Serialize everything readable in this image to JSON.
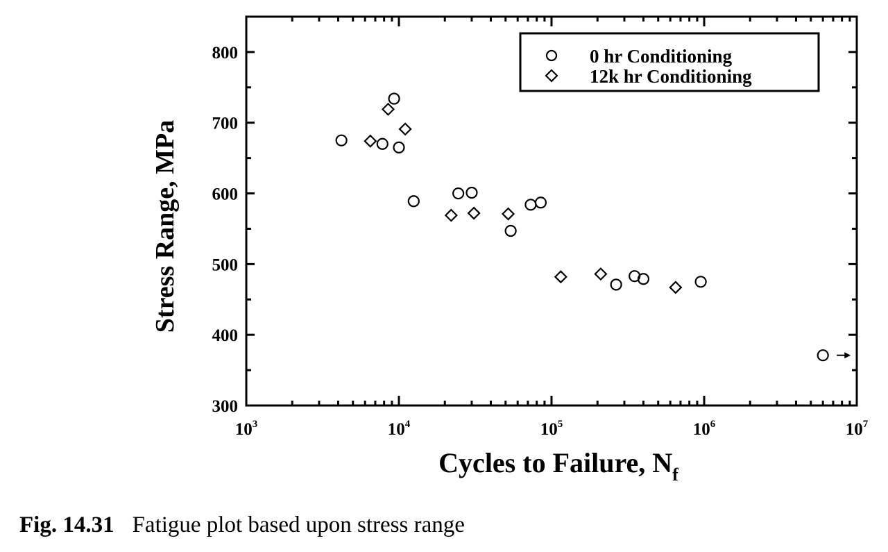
{
  "chart_data": {
    "type": "scatter",
    "xscale": "log",
    "xlim": [
      1000,
      10000000
    ],
    "ylim": [
      300,
      850
    ],
    "x_ticks": [
      {
        "value": 1000,
        "base": "10",
        "exp": "3"
      },
      {
        "value": 10000,
        "base": "10",
        "exp": "4"
      },
      {
        "value": 100000,
        "base": "10",
        "exp": "5"
      },
      {
        "value": 1000000,
        "base": "10",
        "exp": "6"
      },
      {
        "value": 10000000,
        "base": "10",
        "exp": "7"
      }
    ],
    "y_ticks": [
      300,
      400,
      500,
      600,
      700,
      800
    ],
    "xlabel_main": "Cycles to Failure, N",
    "xlabel_sub": "f",
    "ylabel": "Stress Range, MPa",
    "legend_position": "top-right",
    "series": [
      {
        "name": "0 hr Conditioning",
        "marker": "circle",
        "points": [
          {
            "x": 4200,
            "y": 675
          },
          {
            "x": 7800,
            "y": 670
          },
          {
            "x": 9300,
            "y": 734
          },
          {
            "x": 10000,
            "y": 665
          },
          {
            "x": 12500,
            "y": 589
          },
          {
            "x": 24500,
            "y": 600
          },
          {
            "x": 30000,
            "y": 601
          },
          {
            "x": 54000,
            "y": 547
          },
          {
            "x": 73000,
            "y": 584
          },
          {
            "x": 85000,
            "y": 587
          },
          {
            "x": 265000,
            "y": 471
          },
          {
            "x": 350000,
            "y": 483
          },
          {
            "x": 400000,
            "y": 479
          },
          {
            "x": 950000,
            "y": 475
          },
          {
            "x": 6000000,
            "y": 371,
            "runout": true
          }
        ]
      },
      {
        "name": "12k hr Conditioning",
        "marker": "diamond",
        "points": [
          {
            "x": 6500,
            "y": 674
          },
          {
            "x": 8500,
            "y": 719
          },
          {
            "x": 11000,
            "y": 691
          },
          {
            "x": 22000,
            "y": 569
          },
          {
            "x": 31000,
            "y": 572
          },
          {
            "x": 52000,
            "y": 571
          },
          {
            "x": 115000,
            "y": 482
          },
          {
            "x": 210000,
            "y": 486
          },
          {
            "x": 650000,
            "y": 467
          }
        ]
      }
    ]
  },
  "caption": {
    "label": "Fig. 14.31",
    "text": "Fatigue plot based upon stress range"
  }
}
